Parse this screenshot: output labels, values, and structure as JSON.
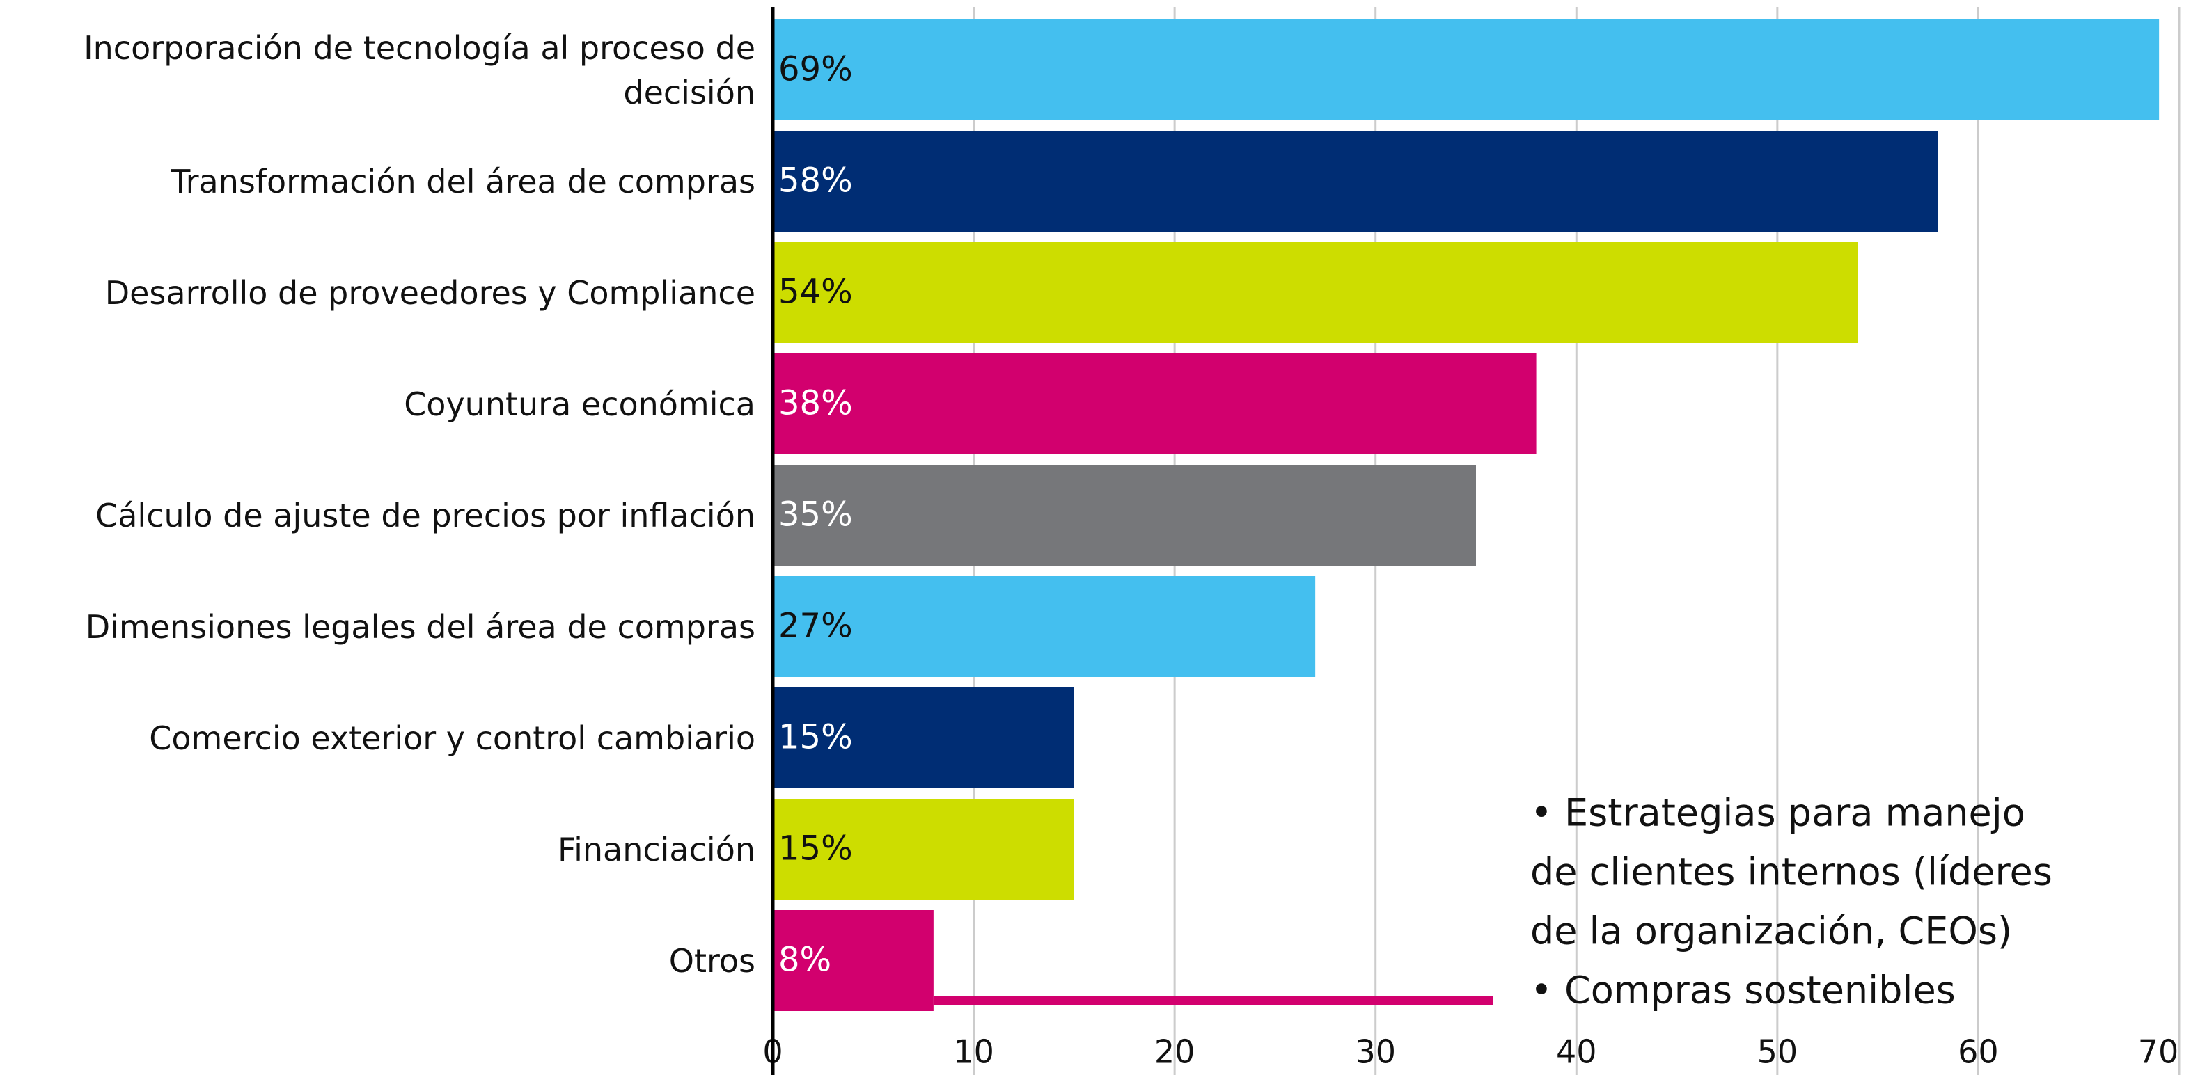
{
  "chart_data": {
    "type": "barh",
    "categories": [
      "Incorporación de tecnología al proceso de decisión",
      "Transformación del área de compras",
      "Desarrollo de proveedores y Compliance",
      "Coyuntura económica",
      "Cálculo de ajuste de precios por inflación",
      "Dimensiones legales del área de compras",
      "Comercio exterior y control cambiario",
      "Financiación",
      "Otros"
    ],
    "values": [
      69,
      58,
      54,
      38,
      35,
      27,
      15,
      15,
      8
    ],
    "value_labels": [
      "69%",
      "58%",
      "54%",
      "38%",
      "35%",
      "27%",
      "15%",
      "15%",
      "8%"
    ],
    "colors": [
      "#44bfef",
      "#002d74",
      "#cddd00",
      "#d2006e",
      "#76777a",
      "#44bfef",
      "#002d74",
      "#cddd00",
      "#d2006e"
    ],
    "xlim": [
      0,
      70
    ],
    "xticks": [
      0,
      10,
      20,
      30,
      40,
      50,
      60,
      70
    ],
    "grid": true,
    "annotation": [
      "• Estrategias para manejo",
      "de clientes internos (líderes",
      "de la organización, CEOs)",
      "• Compras sostenibles"
    ],
    "annotation_color": "#d2006e"
  }
}
